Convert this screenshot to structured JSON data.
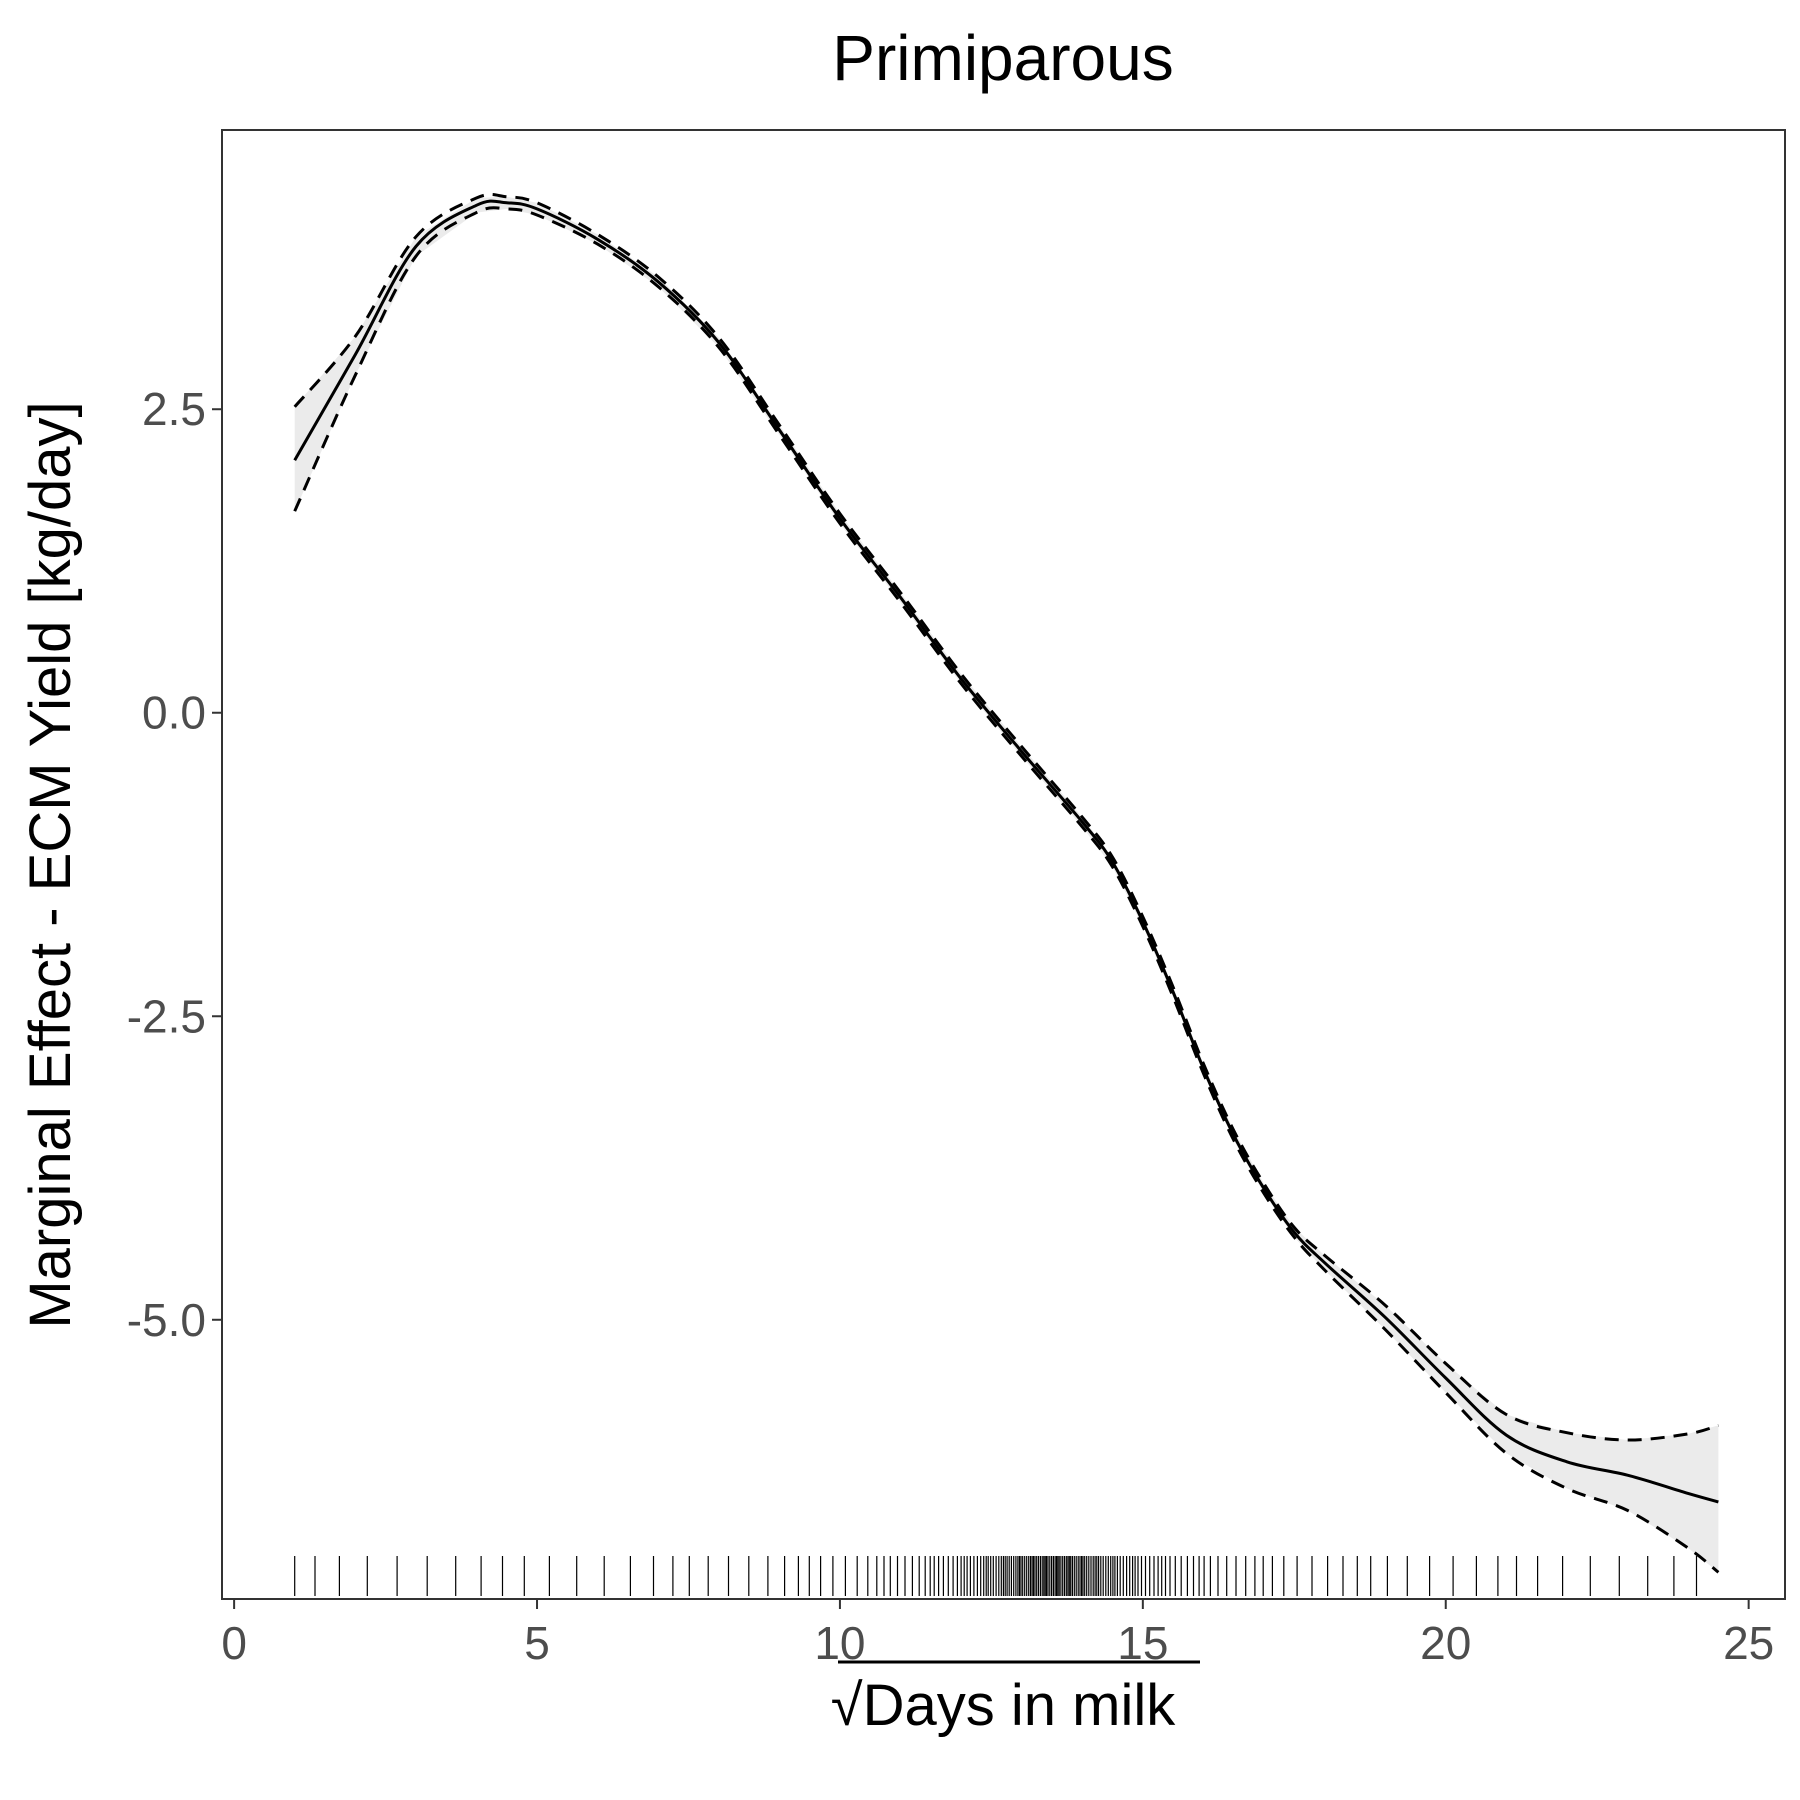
{
  "chart_data": {
    "type": "line",
    "title": "Primiparous",
    "xlabel": "Days in milk",
    "xlabel_prefix": "√",
    "ylabel": "Marginal Effect - ECM Yield [kg/day]",
    "xlim": [
      -0.2,
      25.6
    ],
    "ylim": [
      -7.3,
      4.8
    ],
    "x_ticks": [
      {
        "value": 0,
        "label": "0"
      },
      {
        "value": 5,
        "label": "5"
      },
      {
        "value": 10,
        "label": "10"
      },
      {
        "value": 15,
        "label": "15"
      },
      {
        "value": 20,
        "label": "20"
      },
      {
        "value": 25,
        "label": "25"
      }
    ],
    "y_ticks": [
      {
        "value": 2.5,
        "label": "2.5"
      },
      {
        "value": 0.0,
        "label": "0.0"
      },
      {
        "value": -2.5,
        "label": "-2.5"
      },
      {
        "value": -5.0,
        "label": "-5.0"
      }
    ],
    "grid": false,
    "series": [
      {
        "role": "fit",
        "style": "solid",
        "x": [
          1.0,
          2.0,
          3.0,
          4.0,
          4.5,
          5.0,
          6.0,
          7.0,
          8.0,
          9.0,
          10.0,
          11.0,
          12.0,
          13.0,
          14.0,
          14.5,
          15.0,
          15.5,
          16.0,
          16.5,
          17.0,
          17.5,
          18.0,
          19.0,
          20.0,
          21.0,
          22.0,
          23.0,
          24.0,
          24.5
        ],
        "y": [
          2.08,
          2.95,
          3.84,
          4.18,
          4.2,
          4.15,
          3.9,
          3.55,
          3.05,
          2.33,
          1.6,
          0.95,
          0.28,
          -0.32,
          -0.9,
          -1.23,
          -1.72,
          -2.3,
          -2.93,
          -3.48,
          -3.92,
          -4.28,
          -4.53,
          -4.98,
          -5.48,
          -5.95,
          -6.17,
          -6.28,
          -6.43,
          -6.5
        ]
      },
      {
        "role": "upper",
        "style": "dashed",
        "x": [
          1.0,
          2.0,
          3.0,
          4.0,
          4.5,
          5.0,
          6.0,
          7.0,
          8.0,
          9.0,
          10.0,
          11.0,
          12.0,
          13.0,
          14.0,
          14.5,
          15.0,
          15.5,
          16.0,
          16.5,
          17.0,
          17.5,
          18.0,
          19.0,
          20.0,
          21.0,
          22.0,
          23.0,
          24.0,
          24.5
        ],
        "y": [
          2.52,
          3.1,
          3.92,
          4.24,
          4.25,
          4.2,
          3.94,
          3.59,
          3.09,
          2.37,
          1.64,
          0.99,
          0.32,
          -0.28,
          -0.86,
          -1.19,
          -1.68,
          -2.26,
          -2.89,
          -3.44,
          -3.88,
          -4.24,
          -4.47,
          -4.88,
          -5.36,
          -5.78,
          -5.93,
          -5.99,
          -5.94,
          -5.87
        ]
      },
      {
        "role": "lower",
        "style": "dashed",
        "x": [
          1.0,
          2.0,
          3.0,
          4.0,
          4.5,
          5.0,
          6.0,
          7.0,
          8.0,
          9.0,
          10.0,
          11.0,
          12.0,
          13.0,
          14.0,
          14.5,
          15.0,
          15.5,
          16.0,
          16.5,
          17.0,
          17.5,
          18.0,
          19.0,
          20.0,
          21.0,
          22.0,
          23.0,
          24.0,
          24.5
        ],
        "y": [
          1.66,
          2.78,
          3.76,
          4.12,
          4.15,
          4.1,
          3.86,
          3.51,
          3.01,
          2.29,
          1.56,
          0.91,
          0.24,
          -0.36,
          -0.94,
          -1.27,
          -1.76,
          -2.34,
          -2.97,
          -3.52,
          -3.96,
          -4.32,
          -4.59,
          -5.08,
          -5.6,
          -6.1,
          -6.39,
          -6.57,
          -6.88,
          -7.08
        ]
      }
    ],
    "rug": {
      "range": [
        1.0,
        24.4
      ],
      "description_free": true
    }
  }
}
